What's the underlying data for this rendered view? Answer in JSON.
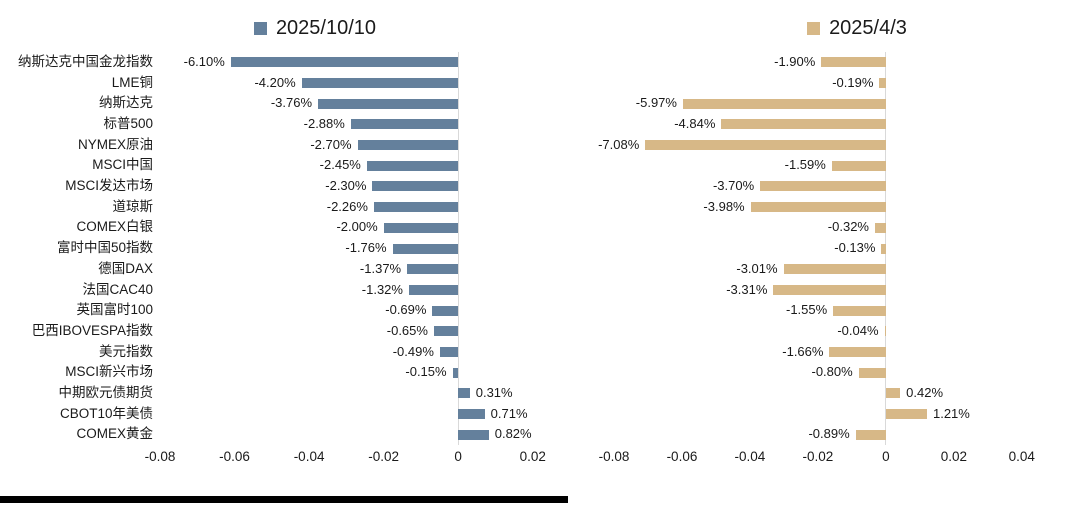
{
  "accent_colors": {
    "series1_blue": "#64809C",
    "series2_tan": "#D7B887",
    "zero_line_gray": "#D9D9D9",
    "text": "#1a1a1a",
    "footer_black": "#000000"
  },
  "chart_data": [
    {
      "type": "bar",
      "orientation": "horizontal",
      "title": "2025/10/10",
      "legend_label": "2025/10/10",
      "legend_position": "top-center",
      "bar_color": "#64809C",
      "grid": false,
      "xlim": [
        -0.08,
        0.03
      ],
      "xticks": [
        -0.08,
        -0.06,
        -0.04,
        -0.02,
        0,
        0.02
      ],
      "value_unit": "percent",
      "categories": [
        "纳斯达克中国金龙指数",
        "LME铜",
        "纳斯达克",
        "标普500",
        "NYMEX原油",
        "MSCI中国",
        "MSCI发达市场",
        "道琼斯",
        "COMEX白银",
        "富时中国50指数",
        "德国DAX",
        "法国CAC40",
        "英国富时100",
        "巴西IBOVESPA指数",
        "美元指数",
        "MSCI新兴市场",
        "中期欧元债期货",
        "CBOT10年美债",
        "COMEX黄金"
      ],
      "values_pct": [
        -6.1,
        -4.2,
        -3.76,
        -2.88,
        -2.7,
        -2.45,
        -2.3,
        -2.26,
        -2.0,
        -1.76,
        -1.37,
        -1.32,
        -0.69,
        -0.65,
        -0.49,
        -0.15,
        0.31,
        0.71,
        0.82
      ],
      "data_labels": [
        "-6.10%",
        "-4.20%",
        "-3.76%",
        "-2.88%",
        "-2.70%",
        "-2.45%",
        "-2.30%",
        "-2.26%",
        "-2.00%",
        "-1.76%",
        "-1.37%",
        "-1.32%",
        "-0.69%",
        "-0.65%",
        "-0.49%",
        "-0.15%",
        "0.31%",
        "0.71%",
        "0.82%"
      ]
    },
    {
      "type": "bar",
      "orientation": "horizontal",
      "title": "2025/4/3",
      "legend_label": "2025/4/3",
      "legend_position": "top-center",
      "bar_color": "#D7B887",
      "grid": false,
      "xlim": [
        -0.085,
        0.048
      ],
      "xticks": [
        -0.08,
        -0.06,
        -0.04,
        -0.02,
        0,
        0.02,
        0.04
      ],
      "value_unit": "percent",
      "categories_shared_with_chart": 0,
      "values_pct": [
        -1.9,
        -0.19,
        -5.97,
        -4.84,
        -7.08,
        -1.59,
        -3.7,
        -3.98,
        -0.32,
        -0.13,
        -3.01,
        -3.31,
        -1.55,
        -0.04,
        -1.66,
        -0.8,
        0.42,
        1.21,
        -0.89
      ],
      "data_labels": [
        "-1.90%",
        "-0.19%",
        "-5.97%",
        "-4.84%",
        "-7.08%",
        "-1.59%",
        "-3.70%",
        "-3.98%",
        "-0.32%",
        "-0.13%",
        "-3.01%",
        "-3.31%",
        "-1.55%",
        "-0.04%",
        "-1.66%",
        "-0.80%",
        "0.42%",
        "1.21%",
        "-0.89%"
      ]
    }
  ],
  "layout_note_visible_elements": {
    "bottom_divider": "solid black bar under left chart"
  }
}
